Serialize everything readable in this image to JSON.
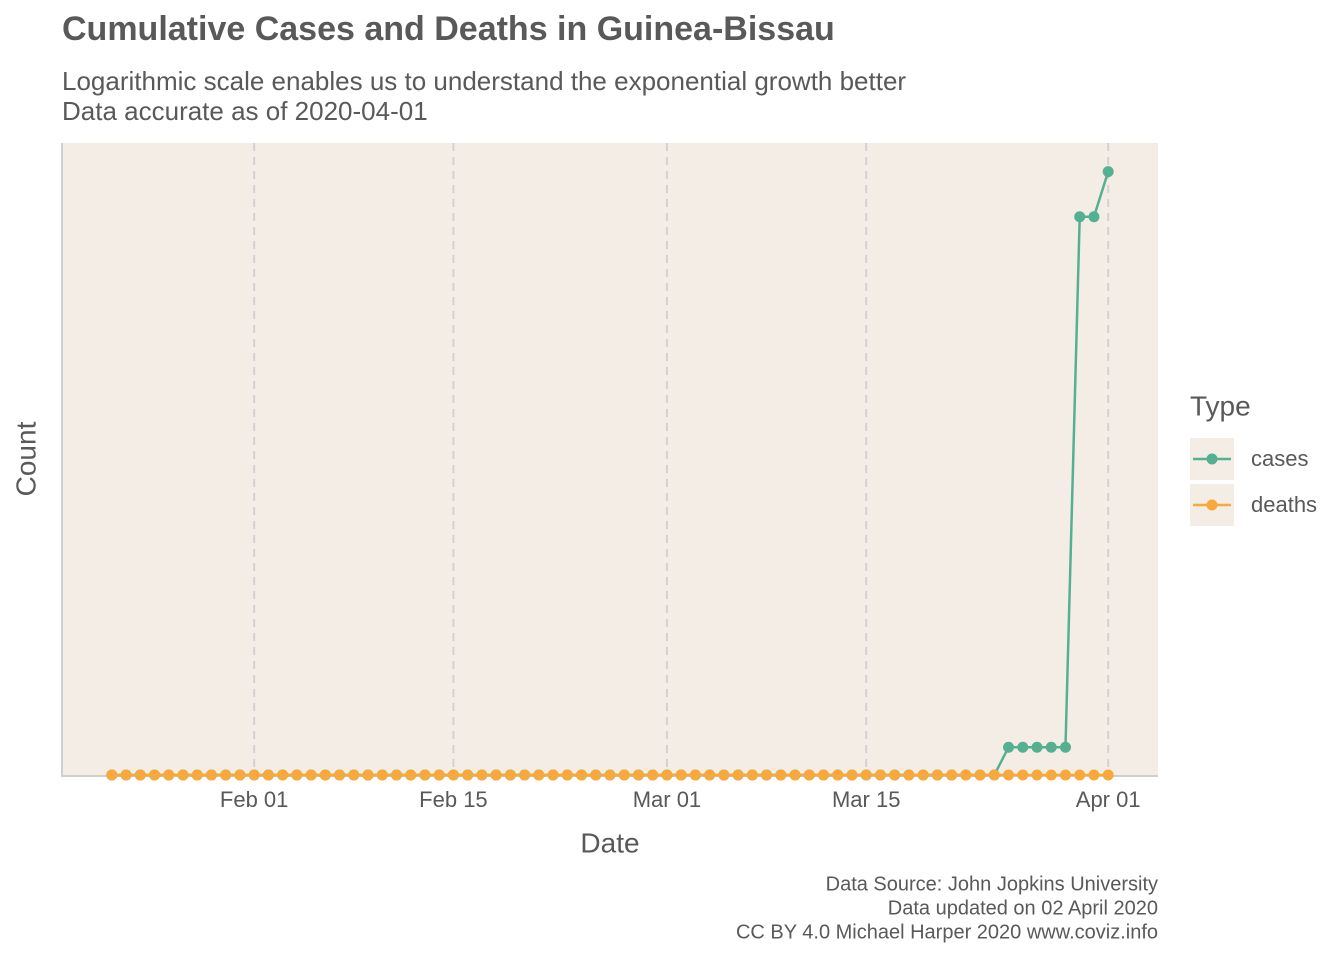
{
  "chart_data": {
    "type": "line",
    "title": "Cumulative Cases and Deaths in Guinea-Bissau",
    "subtitle": [
      "Logarithmic scale enables us to understand the exponential growth better",
      "Data accurate as of 2020-04-01"
    ],
    "x_label": "Date",
    "y_label": "Count",
    "legend_title": "Type",
    "caption": [
      "Data Source: John Jopkins University",
      "Data updated on 02 April 2020",
      "CC BY 4.0 Michael Harper 2020 www.coviz.info"
    ],
    "yscale": "log",
    "grid": "x",
    "legend_position": "right",
    "x": [
      "2020-01-22",
      "2020-01-23",
      "2020-01-24",
      "2020-01-25",
      "2020-01-26",
      "2020-01-27",
      "2020-01-28",
      "2020-01-29",
      "2020-01-30",
      "2020-01-31",
      "2020-02-01",
      "2020-02-02",
      "2020-02-03",
      "2020-02-04",
      "2020-02-05",
      "2020-02-06",
      "2020-02-07",
      "2020-02-08",
      "2020-02-09",
      "2020-02-10",
      "2020-02-11",
      "2020-02-12",
      "2020-02-13",
      "2020-02-14",
      "2020-02-15",
      "2020-02-16",
      "2020-02-17",
      "2020-02-18",
      "2020-02-19",
      "2020-02-20",
      "2020-02-21",
      "2020-02-22",
      "2020-02-23",
      "2020-02-24",
      "2020-02-25",
      "2020-02-26",
      "2020-02-27",
      "2020-02-28",
      "2020-02-29",
      "2020-03-01",
      "2020-03-02",
      "2020-03-03",
      "2020-03-04",
      "2020-03-05",
      "2020-03-06",
      "2020-03-07",
      "2020-03-08",
      "2020-03-09",
      "2020-03-10",
      "2020-03-11",
      "2020-03-12",
      "2020-03-13",
      "2020-03-14",
      "2020-03-15",
      "2020-03-16",
      "2020-03-17",
      "2020-03-18",
      "2020-03-19",
      "2020-03-20",
      "2020-03-21",
      "2020-03-22",
      "2020-03-23",
      "2020-03-24",
      "2020-03-25",
      "2020-03-26",
      "2020-03-27",
      "2020-03-28",
      "2020-03-29",
      "2020-03-30",
      "2020-03-31",
      "2020-04-01"
    ],
    "series": [
      {
        "name": "cases",
        "color": "#55b091",
        "values": [
          0,
          0,
          0,
          0,
          0,
          0,
          0,
          0,
          0,
          0,
          0,
          0,
          0,
          0,
          0,
          0,
          0,
          0,
          0,
          0,
          0,
          0,
          0,
          0,
          0,
          0,
          0,
          0,
          0,
          0,
          0,
          0,
          0,
          0,
          0,
          0,
          0,
          0,
          0,
          0,
          0,
          0,
          0,
          0,
          0,
          0,
          0,
          0,
          0,
          0,
          0,
          0,
          0,
          0,
          0,
          0,
          0,
          0,
          0,
          0,
          0,
          0,
          0,
          2,
          2,
          2,
          2,
          2,
          8,
          8,
          9
        ]
      },
      {
        "name": "deaths",
        "color": "#f9a93b",
        "values": [
          0,
          0,
          0,
          0,
          0,
          0,
          0,
          0,
          0,
          0,
          0,
          0,
          0,
          0,
          0,
          0,
          0,
          0,
          0,
          0,
          0,
          0,
          0,
          0,
          0,
          0,
          0,
          0,
          0,
          0,
          0,
          0,
          0,
          0,
          0,
          0,
          0,
          0,
          0,
          0,
          0,
          0,
          0,
          0,
          0,
          0,
          0,
          0,
          0,
          0,
          0,
          0,
          0,
          0,
          0,
          0,
          0,
          0,
          0,
          0,
          0,
          0,
          0,
          0,
          0,
          0,
          0,
          0,
          0,
          0,
          0
        ]
      }
    ],
    "xlim": [
      "2020-01-18T12:00:00Z",
      "2020-04-04T12:00:00Z"
    ],
    "xticks": [
      {
        "value": "2020-02-01",
        "label": "Feb 01"
      },
      {
        "value": "2020-02-15",
        "label": "Feb 15"
      },
      {
        "value": "2020-03-01",
        "label": "Mar 01"
      },
      {
        "value": "2020-03-15",
        "label": "Mar 15"
      },
      {
        "value": "2020-04-01",
        "label": "Apr 01"
      }
    ],
    "ylim": [
      1.86,
      9.7
    ]
  }
}
